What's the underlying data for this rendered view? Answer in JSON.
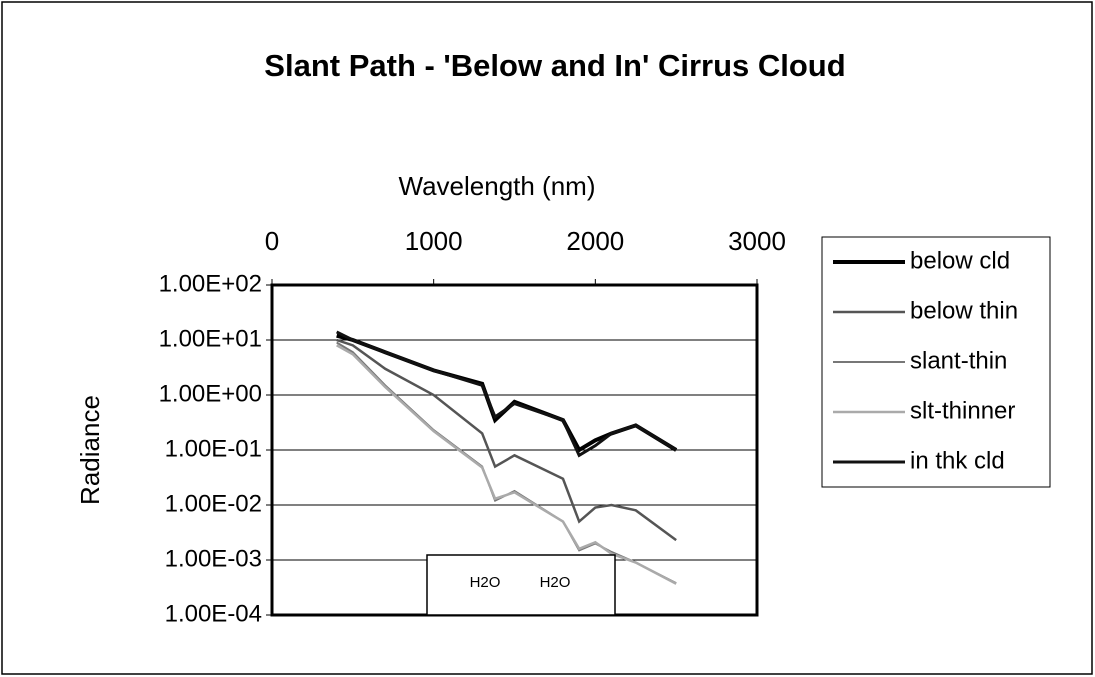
{
  "chart_data": {
    "type": "line",
    "title": "Slant Path - 'Below and In' Cirrus Cloud",
    "xlabel": "Wavelength (nm)",
    "ylabel": "Radiance",
    "x": [
      400,
      500,
      700,
      1000,
      1300,
      1380,
      1500,
      1800,
      1900,
      2000,
      2100,
      2250,
      2500
    ],
    "series": [
      {
        "name": "below cld",
        "color": "#000000",
        "values": [
          12,
          10,
          6,
          2.8,
          1.6,
          0.35,
          0.75,
          0.35,
          0.1,
          0.15,
          0.2,
          0.28,
          0.1
        ]
      },
      {
        "name": "below thin",
        "color": "#555555",
        "values": [
          10,
          8,
          3,
          1,
          0.2,
          0.05,
          0.08,
          0.03,
          0.005,
          0.009,
          0.01,
          0.008,
          0.0023
        ]
      },
      {
        "name": "slant-thin",
        "color": "#777777",
        "values": [
          9,
          6,
          1.5,
          0.23,
          0.05,
          0.012,
          0.018,
          0.005,
          0.0015,
          0.002,
          0.0014,
          0.0009,
          0.00038
        ]
      },
      {
        "name": "slt-thinner",
        "color": "#aaaaaa",
        "values": [
          8,
          5.5,
          1.4,
          0.22,
          0.048,
          0.013,
          0.017,
          0.005,
          0.0016,
          0.0021,
          0.0013,
          0.0009,
          0.00037
        ]
      },
      {
        "name": "in thk cld",
        "color": "#111111",
        "values": [
          14,
          10,
          6,
          2.8,
          1.5,
          0.4,
          0.7,
          0.35,
          0.08,
          0.12,
          0.2,
          0.28,
          0.1
        ]
      }
    ],
    "xlim": [
      0,
      3000
    ],
    "xticks": [
      0,
      1000,
      2000,
      3000
    ],
    "ylim": [
      0.0001,
      100
    ],
    "ylog": true,
    "yticks": [
      {
        "value": 100,
        "label": "1.00E+02"
      },
      {
        "value": 10,
        "label": "1.00E+01"
      },
      {
        "value": 1,
        "label": "1.00E+00"
      },
      {
        "value": 0.1,
        "label": "1.00E-01"
      },
      {
        "value": 0.01,
        "label": "1.00E-02"
      },
      {
        "value": 0.001,
        "label": "1.00E-03"
      },
      {
        "value": 0.0001,
        "label": "1.00E-04"
      }
    ],
    "grid": true,
    "legend": "right",
    "annotations": [
      "H2O",
      "H2O"
    ]
  }
}
